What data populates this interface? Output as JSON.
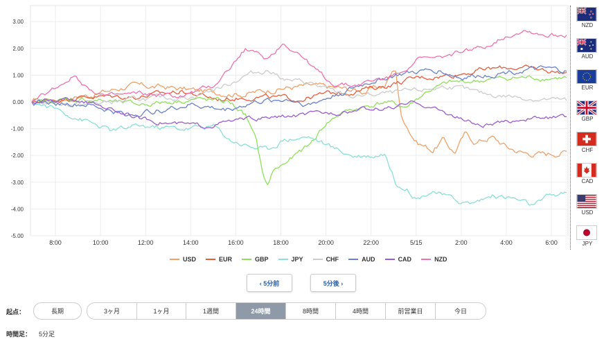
{
  "chart_data": {
    "type": "line",
    "y_ticks": [
      "3.00",
      "2.00",
      "1.00",
      "0.00",
      "-1.00",
      "-2.00",
      "-3.00",
      "-4.00",
      "-5.00"
    ],
    "ylim": [
      -5.0,
      3.6
    ],
    "x_ticks": [
      "8:00",
      "10:00",
      "12:00",
      "14:00",
      "16:00",
      "18:00",
      "20:00",
      "22:00",
      "5/15",
      "2:00",
      "4:00",
      "6:00"
    ],
    "grid": true,
    "legend_position": "bottom",
    "series": [
      {
        "name": "USD",
        "color": "#f0a066",
        "end": -1.85,
        "noise": 0.18,
        "keys": [
          [
            0,
            0
          ],
          [
            0.05,
            0.1
          ],
          [
            0.12,
            0.3
          ],
          [
            0.18,
            0.6
          ],
          [
            0.25,
            0.55
          ],
          [
            0.32,
            0.4
          ],
          [
            0.4,
            0.3
          ],
          [
            0.46,
            0.5
          ],
          [
            0.52,
            0.6
          ],
          [
            0.58,
            0.5
          ],
          [
            0.62,
            0.4
          ],
          [
            0.66,
            0.6
          ],
          [
            0.68,
            1.3
          ],
          [
            0.69,
            -0.5
          ],
          [
            0.7,
            -0.8
          ],
          [
            0.71,
            -1.2
          ],
          [
            0.72,
            -1.5
          ],
          [
            0.75,
            -1.8
          ],
          [
            0.77,
            -1.4
          ],
          [
            0.79,
            -1.9
          ],
          [
            0.81,
            -1.2
          ],
          [
            0.83,
            -1.5
          ],
          [
            0.86,
            -1.3
          ],
          [
            0.89,
            -1.7
          ],
          [
            0.92,
            -1.9
          ],
          [
            0.96,
            -1.95
          ],
          [
            1.0,
            -1.85
          ]
        ]
      },
      {
        "name": "EUR",
        "color": "#e65c3c",
        "end": 1.1,
        "noise": 0.15,
        "keys": [
          [
            0,
            0
          ],
          [
            0.1,
            0.2
          ],
          [
            0.2,
            0.2
          ],
          [
            0.28,
            0.4
          ],
          [
            0.35,
            0.1
          ],
          [
            0.42,
            0.2
          ],
          [
            0.5,
            0.1
          ],
          [
            0.55,
            0.3
          ],
          [
            0.6,
            0.4
          ],
          [
            0.66,
            0.6
          ],
          [
            0.72,
            0.9
          ],
          [
            0.78,
            1.0
          ],
          [
            0.84,
            1.2
          ],
          [
            0.9,
            1.3
          ],
          [
            0.95,
            1.2
          ],
          [
            1.0,
            1.1
          ]
        ]
      },
      {
        "name": "GBP",
        "color": "#8ee05a",
        "end": 0.9,
        "noise": 0.15,
        "keys": [
          [
            0,
            0
          ],
          [
            0.1,
            0.1
          ],
          [
            0.2,
            -0.1
          ],
          [
            0.3,
            0.1
          ],
          [
            0.37,
            0.0
          ],
          [
            0.4,
            -0.5
          ],
          [
            0.42,
            -1.5
          ],
          [
            0.43,
            -2.5
          ],
          [
            0.44,
            -3.2
          ],
          [
            0.45,
            -2.6
          ],
          [
            0.48,
            -2.2
          ],
          [
            0.52,
            -1.6
          ],
          [
            0.55,
            -0.8
          ],
          [
            0.58,
            -0.4
          ],
          [
            0.62,
            -0.2
          ],
          [
            0.66,
            0.0
          ],
          [
            0.7,
            -0.2
          ],
          [
            0.74,
            0.4
          ],
          [
            0.78,
            0.7
          ],
          [
            0.84,
            0.8
          ],
          [
            0.9,
            0.9
          ],
          [
            0.95,
            0.9
          ],
          [
            1.0,
            0.9
          ]
        ]
      },
      {
        "name": "JPY",
        "color": "#88e0d8",
        "end": -3.4,
        "noise": 0.16,
        "keys": [
          [
            0,
            0
          ],
          [
            0.05,
            -0.3
          ],
          [
            0.1,
            -0.7
          ],
          [
            0.15,
            -1.1
          ],
          [
            0.2,
            -0.9
          ],
          [
            0.28,
            -1.0
          ],
          [
            0.34,
            -0.9
          ],
          [
            0.37,
            -1.4
          ],
          [
            0.4,
            -1.6
          ],
          [
            0.44,
            -1.8
          ],
          [
            0.47,
            -1.4
          ],
          [
            0.52,
            -1.3
          ],
          [
            0.56,
            -1.7
          ],
          [
            0.6,
            -2.0
          ],
          [
            0.64,
            -2.0
          ],
          [
            0.66,
            -1.9
          ],
          [
            0.68,
            -3.0
          ],
          [
            0.7,
            -3.2
          ],
          [
            0.72,
            -3.6
          ],
          [
            0.75,
            -3.3
          ],
          [
            0.78,
            -3.6
          ],
          [
            0.82,
            -3.8
          ],
          [
            0.86,
            -3.5
          ],
          [
            0.9,
            -3.6
          ],
          [
            0.94,
            -3.9
          ],
          [
            0.97,
            -3.5
          ],
          [
            1.0,
            -3.4
          ]
        ]
      },
      {
        "name": "CHF",
        "color": "#cccccc",
        "end": 0.05,
        "noise": 0.15,
        "keys": [
          [
            0,
            0
          ],
          [
            0.1,
            -0.1
          ],
          [
            0.2,
            0.1
          ],
          [
            0.3,
            0.2
          ],
          [
            0.36,
            0.6
          ],
          [
            0.4,
            1.0
          ],
          [
            0.44,
            1.2
          ],
          [
            0.48,
            0.8
          ],
          [
            0.52,
            0.7
          ],
          [
            0.56,
            0.4
          ],
          [
            0.6,
            0.2
          ],
          [
            0.66,
            0.3
          ],
          [
            0.72,
            0.4
          ],
          [
            0.78,
            0.6
          ],
          [
            0.84,
            0.3
          ],
          [
            0.9,
            0.2
          ],
          [
            0.95,
            0.1
          ],
          [
            1.0,
            0.05
          ]
        ]
      },
      {
        "name": "AUD",
        "color": "#6a82c8",
        "end": 1.15,
        "noise": 0.16,
        "keys": [
          [
            0,
            0
          ],
          [
            0.1,
            -0.1
          ],
          [
            0.18,
            -0.5
          ],
          [
            0.24,
            -0.3
          ],
          [
            0.3,
            -0.1
          ],
          [
            0.36,
            -0.3
          ],
          [
            0.42,
            0.0
          ],
          [
            0.48,
            0.1
          ],
          [
            0.52,
            -0.1
          ],
          [
            0.56,
            0.2
          ],
          [
            0.6,
            0.5
          ],
          [
            0.64,
            0.8
          ],
          [
            0.68,
            1.0
          ],
          [
            0.72,
            1.1
          ],
          [
            0.76,
            1.2
          ],
          [
            0.8,
            0.9
          ],
          [
            0.84,
            1.0
          ],
          [
            0.88,
            1.1
          ],
          [
            0.92,
            1.2
          ],
          [
            0.96,
            1.2
          ],
          [
            1.0,
            1.15
          ]
        ]
      },
      {
        "name": "CAD",
        "color": "#9a5cd0",
        "end": -0.55,
        "noise": 0.13,
        "keys": [
          [
            0,
            0
          ],
          [
            0.08,
            0.1
          ],
          [
            0.14,
            -0.2
          ],
          [
            0.2,
            -0.6
          ],
          [
            0.26,
            -0.8
          ],
          [
            0.32,
            -0.9
          ],
          [
            0.38,
            -0.7
          ],
          [
            0.44,
            -0.6
          ],
          [
            0.5,
            -0.5
          ],
          [
            0.56,
            -0.4
          ],
          [
            0.62,
            -0.3
          ],
          [
            0.68,
            -0.2
          ],
          [
            0.72,
            0.0
          ],
          [
            0.76,
            -0.3
          ],
          [
            0.8,
            -0.6
          ],
          [
            0.84,
            -0.9
          ],
          [
            0.88,
            -0.8
          ],
          [
            0.92,
            -0.6
          ],
          [
            0.96,
            -0.6
          ],
          [
            1.0,
            -0.55
          ]
        ]
      },
      {
        "name": "NZD",
        "color": "#f070b0",
        "end": 2.5,
        "noise": 0.14,
        "keys": [
          [
            0,
            0
          ],
          [
            0.05,
            0.6
          ],
          [
            0.08,
            1.0
          ],
          [
            0.1,
            0.6
          ],
          [
            0.14,
            0.2
          ],
          [
            0.2,
            0.3
          ],
          [
            0.28,
            0.2
          ],
          [
            0.34,
            0.6
          ],
          [
            0.38,
            1.5
          ],
          [
            0.4,
            2.0
          ],
          [
            0.44,
            1.6
          ],
          [
            0.47,
            2.2
          ],
          [
            0.5,
            1.8
          ],
          [
            0.53,
            1.2
          ],
          [
            0.56,
            0.7
          ],
          [
            0.6,
            0.6
          ],
          [
            0.64,
            0.8
          ],
          [
            0.68,
            1.0
          ],
          [
            0.72,
            1.6
          ],
          [
            0.76,
            1.6
          ],
          [
            0.8,
            1.9
          ],
          [
            0.84,
            2.0
          ],
          [
            0.88,
            2.4
          ],
          [
            0.92,
            2.7
          ],
          [
            0.96,
            2.5
          ],
          [
            1.0,
            2.5
          ]
        ]
      }
    ]
  },
  "flags": [
    {
      "code": "NZD",
      "icon": "nz-flag-icon"
    },
    {
      "code": "AUD",
      "icon": "au-flag-icon"
    },
    {
      "code": "EUR",
      "icon": "eu-flag-icon"
    },
    {
      "code": "GBP",
      "icon": "uk-flag-icon"
    },
    {
      "code": "CHF",
      "icon": "ch-flag-icon"
    },
    {
      "code": "CAD",
      "icon": "ca-flag-icon"
    },
    {
      "code": "USD",
      "icon": "us-flag-icon"
    },
    {
      "code": "JPY",
      "icon": "jp-flag-icon"
    }
  ],
  "nav": {
    "prev": "‹ 5分前",
    "next": "5分後 ›"
  },
  "controls": {
    "start_label": "起点：",
    "long_label": "長期",
    "periods": [
      "3ヶ月",
      "1ヶ月",
      "1週間",
      "24時間",
      "8時間",
      "4時間",
      "前営業日",
      "今日"
    ],
    "active_period": "24時間",
    "interval_label": "時間足：",
    "interval_value": "5分足"
  }
}
